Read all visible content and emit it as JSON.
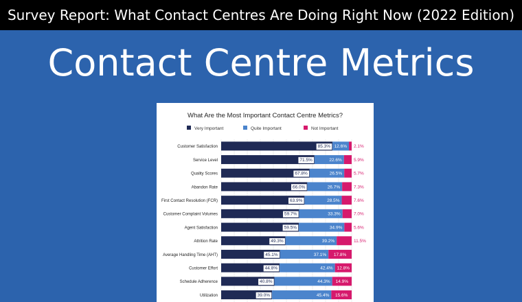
{
  "banner": {
    "text": "Survey Report: What Contact Centres Are Doing Right Now (2022 Edition)"
  },
  "page": {
    "title": "Contact Centre Metrics"
  },
  "colors": {
    "background": "#2c63ad",
    "banner_bg": "#000000",
    "very_important": "#1f2a55",
    "quite_important": "#4b84cc",
    "not_important": "#d6196c"
  },
  "chart_data": {
    "type": "bar",
    "orientation": "horizontal",
    "stacked": true,
    "title": "What Are the Most Important Contact Centre Metrics?",
    "legend_position": "top",
    "grid": true,
    "xlim": [
      0,
      100
    ],
    "categories": [
      "Customer Satisfaction",
      "Service Level",
      "Quality Scores",
      "Abandon Rate",
      "First Contact Resolution (FCR)",
      "Customer Complaint Volumes",
      "Agent Satisfaction",
      "Attrition Rate",
      "Average Handling Time (AHT)",
      "Customer Effort",
      "Schedule Adherence",
      "Utilization"
    ],
    "series": [
      {
        "name": "Very Important",
        "color": "#1f2a55",
        "values": [
          85.3,
          71.5,
          67.8,
          66.0,
          63.9,
          59.7,
          59.5,
          49.3,
          45.1,
          44.8,
          40.8,
          39.0
        ],
        "labels": [
          "85.3%",
          "71.5%",
          "67.8%",
          "66.0%",
          "63.9%",
          "59.7%",
          "59.5%",
          "49.3%",
          "45.1%",
          "44.8%",
          "40.8%",
          "39.0%"
        ]
      },
      {
        "name": "Quite Important",
        "color": "#4b84cc",
        "values": [
          12.6,
          22.6,
          26.5,
          26.7,
          28.5,
          33.3,
          34.9,
          39.2,
          37.1,
          42.4,
          44.3,
          45.4
        ],
        "labels": [
          "12.6%",
          "22.6%",
          "26.5%",
          "26.7%",
          "28.5%",
          "33.3%",
          "34.9%",
          "39.2%",
          "37.1%",
          "42.4%",
          "44.3%",
          "45.4%"
        ]
      },
      {
        "name": "Not Important",
        "color": "#d6196c",
        "values": [
          2.1,
          5.9,
          5.7,
          7.3,
          7.6,
          7.0,
          5.6,
          11.5,
          17.8,
          12.8,
          14.9,
          15.6
        ],
        "labels": [
          "2.1%",
          "5.9%",
          "5.7%",
          "7.3%",
          "7.6%",
          "7.0%",
          "5.6%",
          "11.5%",
          "17.8%",
          "12.8%",
          "14.9%",
          "15.6%"
        ]
      }
    ]
  }
}
